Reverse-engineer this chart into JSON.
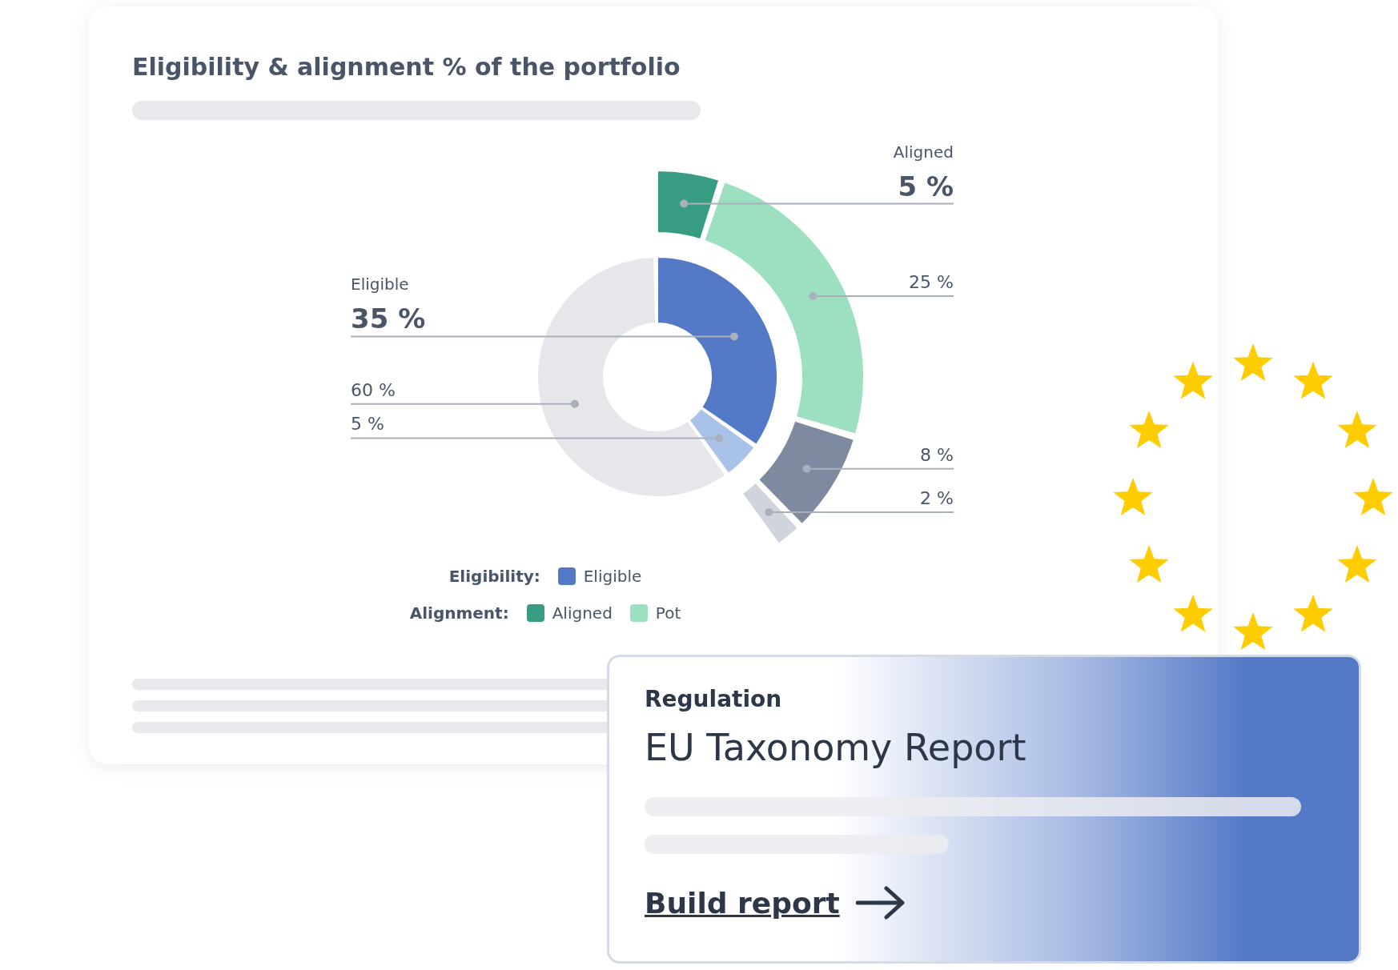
{
  "chart_data": [
    {
      "type": "donut",
      "title": "Eligibility & alignment % of the portfolio",
      "legend": "bottom",
      "legend_title": "Eligibility:",
      "categories": [
        "Eligible",
        null,
        null
      ],
      "values": [
        35,
        5,
        60
      ],
      "colors": [
        "#5479c6",
        "#a9c3e8",
        "#e6e7eb"
      ],
      "value_labels": [
        "35 %",
        "5 %",
        "60 %"
      ]
    },
    {
      "type": "donut",
      "legend": "bottom",
      "legend_title": "Alignment:",
      "categories": [
        "Aligned",
        "Pot",
        null,
        null
      ],
      "values": [
        5,
        25,
        8,
        2
      ],
      "colors": [
        "#389c82",
        "#9ddfc1",
        "#7e8aa0",
        "#d0d5dd"
      ],
      "value_labels": [
        "5 %",
        "25 %",
        "8 %",
        "2 %"
      ]
    },
    {
      "type": "other",
      "subtitle": "Regulation",
      "title": "EU Taxonomy Report",
      "annotations": [
        "Build report"
      ]
    }
  ]
}
